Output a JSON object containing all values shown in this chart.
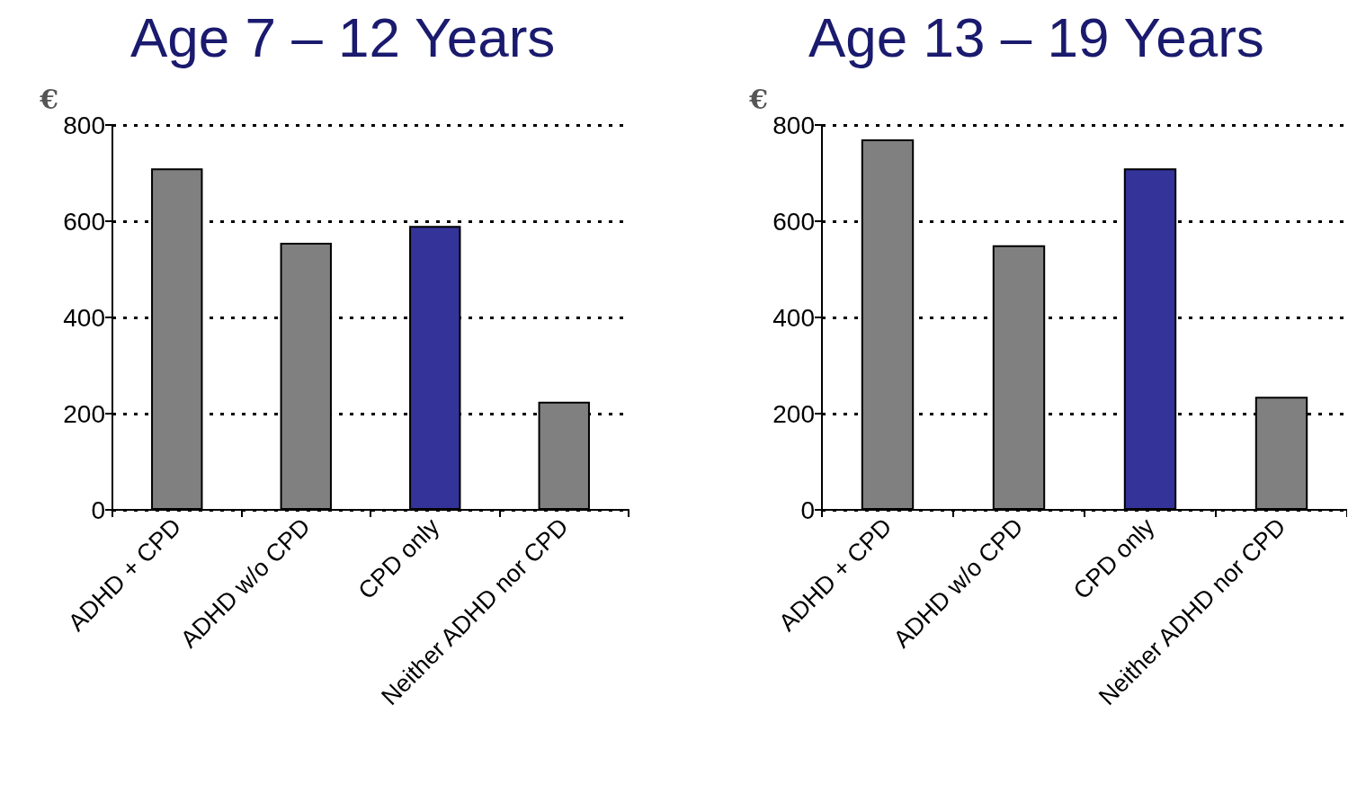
{
  "chart_data": [
    {
      "type": "bar",
      "title": "Age 7 – 12 Years",
      "ylabel": "€",
      "categories": [
        "ADHD + CPD",
        "ADHD w/o CPD",
        "CPD only",
        "Neither ADHD nor CPD"
      ],
      "values": [
        710,
        555,
        590,
        225
      ],
      "colors": [
        "#808080",
        "#808080",
        "#333399",
        "#808080"
      ],
      "ylim": [
        0,
        800
      ],
      "yticks": [
        0,
        200,
        400,
        600,
        800
      ],
      "grid": "y"
    },
    {
      "type": "bar",
      "title": "Age 13 – 19 Years",
      "ylabel": "€",
      "categories": [
        "ADHD + CPD",
        "ADHD w/o CPD",
        "CPD only",
        "Neither ADHD nor CPD"
      ],
      "values": [
        770,
        550,
        710,
        235
      ],
      "colors": [
        "#808080",
        "#808080",
        "#333399",
        "#808080"
      ],
      "ylim": [
        0,
        800
      ],
      "yticks": [
        0,
        200,
        400,
        600,
        800
      ],
      "grid": "y"
    }
  ]
}
